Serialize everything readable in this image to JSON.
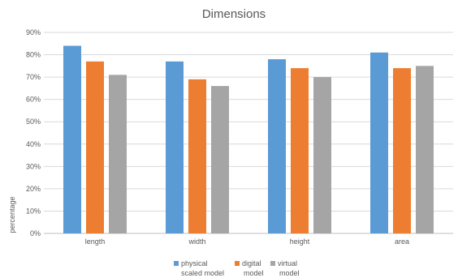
{
  "chart_data": {
    "type": "bar",
    "title": "Dimensions",
    "xlabel": "",
    "ylabel": "percentage",
    "categories": [
      "length",
      "width",
      "height",
      "area"
    ],
    "series": [
      {
        "name": [
          "physical",
          "scaled model"
        ],
        "color": "#5B9BD5",
        "values": [
          84,
          77,
          78,
          81
        ]
      },
      {
        "name": [
          "digital",
          "model"
        ],
        "color": "#ED7D31",
        "values": [
          77,
          69,
          74,
          74
        ]
      },
      {
        "name": [
          "virtual",
          "model"
        ],
        "color": "#A5A5A5",
        "values": [
          71,
          66,
          70,
          75
        ]
      }
    ],
    "ylim": [
      0,
      90
    ],
    "yticks": [
      "0%",
      "10%",
      "20%",
      "30%",
      "40%",
      "50%",
      "60%",
      "70%",
      "80%",
      "90%"
    ],
    "grid": true,
    "legend": "bottom"
  }
}
